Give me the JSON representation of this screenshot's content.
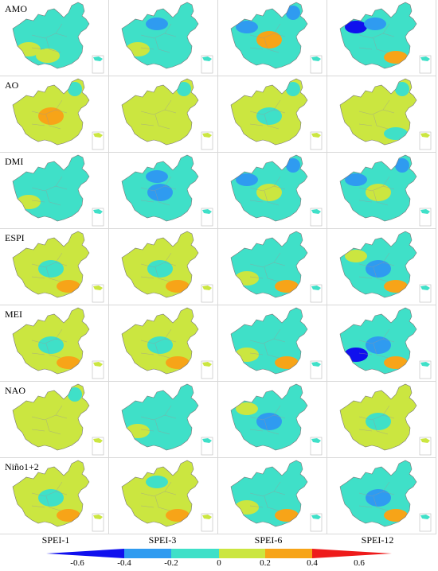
{
  "rows": [
    "AMO",
    "AO",
    "DMI",
    "ESPI",
    "MEI",
    "NAO",
    "Niño1+2"
  ],
  "columns": [
    "SPEI-1",
    "SPEI-3",
    "SPEI-6",
    "SPEI-12"
  ],
  "colorbar": {
    "ticks": [
      "-0.6",
      "-0.4",
      "-0.2",
      "0",
      "0.2",
      "0.4",
      "0.6"
    ],
    "bins": [
      {
        "range": "< -0.4",
        "color": "#1010ee"
      },
      {
        "range": "-0.4 to -0.2",
        "color": "#2f9bf0"
      },
      {
        "range": "-0.2 to 0",
        "color": "#3fe0c8"
      },
      {
        "range": "0 to 0.2",
        "color": "#cbe640"
      },
      {
        "range": "0.2 to 0.4",
        "color": "#f7a418"
      },
      {
        "range": "> 0.4",
        "color": "#ee1b1b"
      }
    ]
  },
  "maps": [
    [
      {
        "base": "#3fe0c8",
        "patches": [
          {
            "c": "#cbe640",
            "at": "sw"
          },
          {
            "c": "#cbe640",
            "at": "s"
          }
        ]
      },
      {
        "base": "#3fe0c8",
        "patches": [
          {
            "c": "#2f9bf0",
            "at": "nc"
          },
          {
            "c": "#cbe640",
            "at": "sw"
          }
        ]
      },
      {
        "base": "#3fe0c8",
        "patches": [
          {
            "c": "#2f9bf0",
            "at": "nw"
          },
          {
            "c": "#2f9bf0",
            "at": "ne"
          },
          {
            "c": "#f7a418",
            "at": "c"
          }
        ]
      },
      {
        "base": "#3fe0c8",
        "patches": [
          {
            "c": "#1010ee",
            "at": "nw"
          },
          {
            "c": "#2f9bf0",
            "at": "nc"
          },
          {
            "c": "#f7a418",
            "at": "se"
          }
        ]
      }
    ],
    [
      {
        "base": "#cbe640",
        "patches": [
          {
            "c": "#f7a418",
            "at": "c"
          },
          {
            "c": "#3fe0c8",
            "at": "ne"
          }
        ]
      },
      {
        "base": "#cbe640",
        "patches": [
          {
            "c": "#3fe0c8",
            "at": "ne"
          }
        ]
      },
      {
        "base": "#cbe640",
        "patches": [
          {
            "c": "#3fe0c8",
            "at": "ne"
          },
          {
            "c": "#3fe0c8",
            "at": "c"
          }
        ]
      },
      {
        "base": "#cbe640",
        "patches": [
          {
            "c": "#3fe0c8",
            "at": "ne"
          },
          {
            "c": "#3fe0c8",
            "at": "se"
          }
        ]
      }
    ],
    [
      {
        "base": "#3fe0c8",
        "patches": [
          {
            "c": "#cbe640",
            "at": "sw"
          }
        ]
      },
      {
        "base": "#3fe0c8",
        "patches": [
          {
            "c": "#2f9bf0",
            "at": "nc"
          },
          {
            "c": "#2f9bf0",
            "at": "c"
          }
        ]
      },
      {
        "base": "#3fe0c8",
        "patches": [
          {
            "c": "#2f9bf0",
            "at": "nw"
          },
          {
            "c": "#cbe640",
            "at": "c"
          },
          {
            "c": "#2f9bf0",
            "at": "ne"
          }
        ]
      },
      {
        "base": "#3fe0c8",
        "patches": [
          {
            "c": "#2f9bf0",
            "at": "nw"
          },
          {
            "c": "#cbe640",
            "at": "c"
          },
          {
            "c": "#2f9bf0",
            "at": "ne"
          }
        ]
      }
    ],
    [
      {
        "base": "#cbe640",
        "patches": [
          {
            "c": "#3fe0c8",
            "at": "c"
          },
          {
            "c": "#f7a418",
            "at": "se"
          }
        ]
      },
      {
        "base": "#cbe640",
        "patches": [
          {
            "c": "#3fe0c8",
            "at": "c"
          },
          {
            "c": "#f7a418",
            "at": "se"
          }
        ]
      },
      {
        "base": "#3fe0c8",
        "patches": [
          {
            "c": "#cbe640",
            "at": "sw"
          },
          {
            "c": "#f7a418",
            "at": "se"
          }
        ]
      },
      {
        "base": "#3fe0c8",
        "patches": [
          {
            "c": "#2f9bf0",
            "at": "c"
          },
          {
            "c": "#f7a418",
            "at": "se"
          },
          {
            "c": "#cbe640",
            "at": "nw"
          }
        ]
      }
    ],
    [
      {
        "base": "#cbe640",
        "patches": [
          {
            "c": "#3fe0c8",
            "at": "c"
          },
          {
            "c": "#f7a418",
            "at": "se"
          }
        ]
      },
      {
        "base": "#cbe640",
        "patches": [
          {
            "c": "#3fe0c8",
            "at": "c"
          },
          {
            "c": "#f7a418",
            "at": "se"
          }
        ]
      },
      {
        "base": "#3fe0c8",
        "patches": [
          {
            "c": "#cbe640",
            "at": "sw"
          },
          {
            "c": "#f7a418",
            "at": "se"
          }
        ]
      },
      {
        "base": "#3fe0c8",
        "patches": [
          {
            "c": "#2f9bf0",
            "at": "c"
          },
          {
            "c": "#1010ee",
            "at": "sw"
          },
          {
            "c": "#f7a418",
            "at": "se"
          }
        ]
      }
    ],
    [
      {
        "base": "#cbe640",
        "patches": [
          {
            "c": "#3fe0c8",
            "at": "ne"
          }
        ]
      },
      {
        "base": "#3fe0c8",
        "patches": [
          {
            "c": "#cbe640",
            "at": "sw"
          }
        ]
      },
      {
        "base": "#3fe0c8",
        "patches": [
          {
            "c": "#cbe640",
            "at": "nw"
          },
          {
            "c": "#2f9bf0",
            "at": "c"
          }
        ]
      },
      {
        "base": "#cbe640",
        "patches": [
          {
            "c": "#3fe0c8",
            "at": "c"
          }
        ]
      }
    ],
    [
      {
        "base": "#cbe640",
        "patches": [
          {
            "c": "#3fe0c8",
            "at": "c"
          },
          {
            "c": "#f7a418",
            "at": "se"
          }
        ]
      },
      {
        "base": "#cbe640",
        "patches": [
          {
            "c": "#3fe0c8",
            "at": "nc"
          },
          {
            "c": "#f7a418",
            "at": "se"
          }
        ]
      },
      {
        "base": "#3fe0c8",
        "patches": [
          {
            "c": "#cbe640",
            "at": "sw"
          },
          {
            "c": "#f7a418",
            "at": "se"
          }
        ]
      },
      {
        "base": "#3fe0c8",
        "patches": [
          {
            "c": "#2f9bf0",
            "at": "c"
          },
          {
            "c": "#f7a418",
            "at": "se"
          }
        ]
      }
    ]
  ]
}
